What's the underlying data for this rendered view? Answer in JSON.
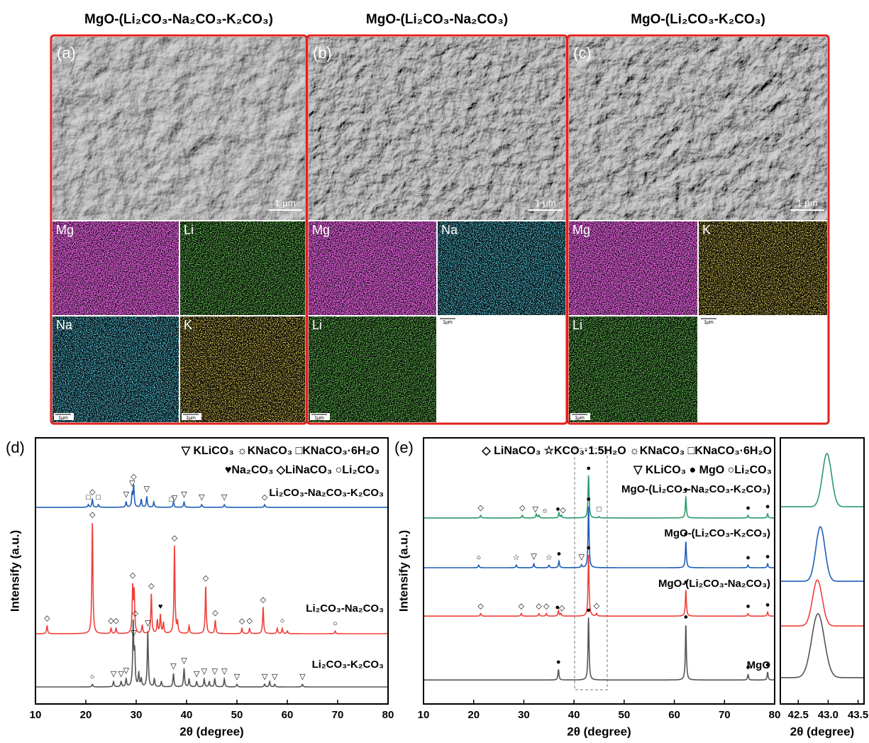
{
  "sem": {
    "panels": [
      {
        "label": "(a)",
        "title": "MgO-(Li₂CO₃-Na₂CO₃-K₂CO₃)",
        "scale_bar": "1 µm",
        "maps": [
          {
            "element": "Mg"
          },
          {
            "element": "Li"
          },
          {
            "element": "Na",
            "scale_bar": "1μm"
          },
          {
            "element": "K",
            "scale_bar": "1μm"
          }
        ]
      },
      {
        "label": "(b)",
        "title": "MgO-(Li₂CO₃-Na₂CO₃)",
        "scale_bar": "1 µm",
        "maps": [
          {
            "element": "Mg"
          },
          {
            "element": "Na",
            "scale_bar": "1μm"
          },
          {
            "element": "Li",
            "scale_bar": "1μm"
          }
        ]
      },
      {
        "label": "(c)",
        "title": "MgO-(Li₂CO₃-K₂CO₃)",
        "scale_bar": "1 µm",
        "maps": [
          {
            "element": "Mg"
          },
          {
            "element": "K",
            "scale_bar": "1μm"
          },
          {
            "element": "Li",
            "scale_bar": "1μm"
          }
        ]
      }
    ]
  },
  "chart_data": [
    {
      "type": "xrd",
      "panel_label": "(d)",
      "xlabel": "2θ (degree)",
      "ylabel": "Intensify (a.u.)",
      "xlim": [
        10,
        80
      ],
      "xticks": [
        10,
        20,
        30,
        40,
        50,
        60,
        70,
        80
      ],
      "ylim": [
        0,
        100
      ],
      "legend": [
        "▽ KLiCO₃ ☼KNaCO₃ □KNaCO₃·6H₂O",
        "♥Na₂CO₃ ◇LiNaCO₃ ○Li₂CO₃"
      ],
      "series": [
        {
          "name": "Li₂CO₃-Na₂CO₃-K₂CO₃",
          "color": "#1f5fb8",
          "baseline": 73.9,
          "peaks": {
            "x": [
              20.5,
              21.3,
              22.5,
              28,
              29.2,
              29.5,
              31,
              32.1,
              33.5,
              37.4,
              39.5,
              43,
              47.5,
              55.5
            ],
            "height": [
              1,
              3,
              1,
              2,
              5,
              8,
              3,
              4,
              2,
              2,
              2,
              1,
              1,
              1
            ]
          },
          "markers": [
            {
              "x": 20.5,
              "symbol": "□"
            },
            {
              "x": 21.3,
              "symbol": "◇"
            },
            {
              "x": 22.5,
              "symbol": "□"
            },
            {
              "x": 28,
              "symbol": "▽"
            },
            {
              "x": 29.2,
              "symbol": "▽"
            },
            {
              "x": 29.5,
              "symbol": "◇"
            },
            {
              "x": 32.1,
              "symbol": "▽"
            },
            {
              "x": 37,
              "symbol": "□"
            },
            {
              "x": 37.6,
              "symbol": "▽"
            },
            {
              "x": 39.5,
              "symbol": "▽"
            },
            {
              "x": 43,
              "symbol": "▽"
            },
            {
              "x": 47.5,
              "symbol": "▽"
            },
            {
              "x": 55.5,
              "symbol": "◇"
            }
          ]
        },
        {
          "name": "Li₂CO₃-Na₂CO₃",
          "color": "#f0403a",
          "baseline": 26.4,
          "peaks": {
            "x": [
              12.3,
              21.3,
              25,
              26,
              29.3,
              29.6,
              31.2,
              33,
              34.2,
              34.8,
              35.4,
              37.6,
              38.2,
              40.5,
              43.8,
              45.7,
              51,
              52.5,
              55.2,
              58,
              59,
              60,
              69.5
            ],
            "height": [
              3,
              42,
              2,
              2,
              17,
              15,
              3,
              15,
              5,
              7,
              4,
              33,
              4,
              3,
              18,
              5,
              2,
              2,
              10,
              2,
              2,
              1,
              1
            ]
          },
          "markers": [
            {
              "x": 12.3,
              "symbol": "◇"
            },
            {
              "x": 21.3,
              "symbol": "◇"
            },
            {
              "x": 25,
              "symbol": "◇"
            },
            {
              "x": 26,
              "symbol": "◇"
            },
            {
              "x": 29.3,
              "symbol": "◇"
            },
            {
              "x": 29.8,
              "symbol": "◇"
            },
            {
              "x": 33,
              "symbol": "◇"
            },
            {
              "x": 34.8,
              "symbol": "♥"
            },
            {
              "x": 37.6,
              "symbol": "◇"
            },
            {
              "x": 43.8,
              "symbol": "◇"
            },
            {
              "x": 45.7,
              "symbol": "◇"
            },
            {
              "x": 51,
              "symbol": "◇"
            },
            {
              "x": 52.5,
              "symbol": "◇"
            },
            {
              "x": 55.2,
              "symbol": "◇"
            },
            {
              "x": 59,
              "symbol": "○"
            },
            {
              "x": 69.5,
              "symbol": "○"
            }
          ]
        },
        {
          "name": "Li₂CO₃-K₂CO₃",
          "color": "#555555",
          "baseline": 6.4,
          "peaks": {
            "x": [
              21.3,
              25.5,
              27,
              28,
              29.4,
              29.7,
              30.5,
              31,
              32.3,
              33.6,
              35,
              37.4,
              39.5,
              40.5,
              42,
              43.5,
              44.5,
              45.6,
              47.5,
              50,
              55.5,
              56.5,
              57.5,
              63
            ],
            "height": [
              1,
              2,
              2,
              3,
              24,
              12,
              5,
              3,
              21,
              3,
              2,
              5,
              7,
              3,
              2,
              3,
              2,
              3,
              3,
              1,
              1,
              2,
              1,
              1
            ]
          },
          "markers": [
            {
              "x": 21.3,
              "symbol": "○"
            },
            {
              "x": 25.5,
              "symbol": "▽"
            },
            {
              "x": 27,
              "symbol": "▽"
            },
            {
              "x": 28,
              "symbol": "▽"
            },
            {
              "x": 29.5,
              "symbol": "▽"
            },
            {
              "x": 32.3,
              "symbol": "▽"
            },
            {
              "x": 37.4,
              "symbol": "▽"
            },
            {
              "x": 39.5,
              "symbol": "▽"
            },
            {
              "x": 42,
              "symbol": "▽"
            },
            {
              "x": 43.5,
              "symbol": "▽"
            },
            {
              "x": 45.6,
              "symbol": "▽"
            },
            {
              "x": 47.5,
              "symbol": "▽"
            },
            {
              "x": 50,
              "symbol": "▽"
            },
            {
              "x": 55.5,
              "symbol": "▽"
            },
            {
              "x": 57.5,
              "symbol": "▽"
            },
            {
              "x": 63,
              "symbol": "▽"
            }
          ]
        }
      ]
    },
    {
      "type": "xrd",
      "panel_label": "(e)",
      "xlabel": "2θ (degree)",
      "ylabel": "Intensify (a.u.)",
      "xlim": [
        10,
        80
      ],
      "xticks": [
        10,
        20,
        30,
        40,
        50,
        60,
        70,
        80
      ],
      "ylim": [
        0,
        100
      ],
      "legend": [
        "◇ LiNaCO₃ ☆KCO₃·1.5H₂O ☼KNaCO₃ □KNaCO₃·6H₂O",
        "▽ KLiCO₃ ● MgO ○Li₂CO₃"
      ],
      "series": [
        {
          "name": "MgO-(Li₂CO₃-Na₂CO₃-K₂CO₃)",
          "color": "#2a9a6a",
          "baseline": 69.9,
          "peaks": {
            "x": [
              21.4,
              29.7,
              32.5,
              33,
              37,
              37.5,
              42.9,
              45,
              62.3,
              74.7,
              78.6
            ],
            "height": [
              1,
              1,
              1.5,
              1,
              2,
              1,
              16,
              0.5,
              8,
              1,
              1.5
            ]
          },
          "markers": [
            {
              "x": 21.4,
              "symbol": "◇"
            },
            {
              "x": 29.7,
              "symbol": "◇"
            },
            {
              "x": 32.3,
              "symbol": "▽"
            },
            {
              "x": 34.2,
              "symbol": "☼"
            },
            {
              "x": 36.8,
              "symbol": "●"
            },
            {
              "x": 37.8,
              "symbol": "◇"
            },
            {
              "x": 42.9,
              "symbol": "●"
            },
            {
              "x": 45,
              "symbol": "□"
            },
            {
              "x": 62.3,
              "symbol": "●"
            },
            {
              "x": 74.7,
              "symbol": "●"
            },
            {
              "x": 78.6,
              "symbol": "●"
            }
          ]
        },
        {
          "name": "MgO-(Li₂CO₃-K₂CO₃)",
          "color": "#1f5fb8",
          "baseline": 51.2,
          "peaks": {
            "x": [
              21,
              28.5,
              32,
              35,
              37,
              41.5,
              42.9,
              62.3,
              74.7,
              78.6
            ],
            "height": [
              1,
              1,
              1.5,
              1,
              2.5,
              1,
              23,
              10,
              1,
              1.5
            ]
          },
          "markers": [
            {
              "x": 21,
              "symbol": "○"
            },
            {
              "x": 28.5,
              "symbol": "☆"
            },
            {
              "x": 32,
              "symbol": "▽"
            },
            {
              "x": 35,
              "symbol": "☆"
            },
            {
              "x": 37,
              "symbol": "●"
            },
            {
              "x": 41.5,
              "symbol": "▽"
            },
            {
              "x": 42.9,
              "symbol": "●"
            },
            {
              "x": 62.3,
              "symbol": "●"
            },
            {
              "x": 74.7,
              "symbol": "●"
            },
            {
              "x": 78.6,
              "symbol": "●"
            }
          ]
        },
        {
          "name": "MgO-(Li₂CO₃-Na₂CO₃)",
          "color": "#f0403a",
          "baseline": 33,
          "peaks": {
            "x": [
              21.4,
              29.5,
              33,
              34.5,
              36.9,
              37.4,
              42.9,
              44.5,
              62.3,
              74.7,
              78.6
            ],
            "height": [
              1,
              1,
              1,
              1,
              2,
              1,
              23,
              1,
              10,
              1,
              1.5
            ]
          },
          "markers": [
            {
              "x": 21.4,
              "symbol": "◇"
            },
            {
              "x": 29.5,
              "symbol": "◇"
            },
            {
              "x": 33,
              "symbol": "◇"
            },
            {
              "x": 34.5,
              "symbol": "◇"
            },
            {
              "x": 36.7,
              "symbol": "●"
            },
            {
              "x": 37.6,
              "symbol": "◇"
            },
            {
              "x": 42.9,
              "symbol": "●"
            },
            {
              "x": 44.5,
              "symbol": "◇"
            },
            {
              "x": 62.3,
              "symbol": "●"
            },
            {
              "x": 74.7,
              "symbol": "●"
            },
            {
              "x": 78.6,
              "symbol": "●"
            }
          ]
        },
        {
          "name": "MgO",
          "color": "#555555",
          "baseline": 9,
          "peaks": {
            "x": [
              36.9,
              42.9,
              62.3,
              74.7,
              78.6
            ],
            "height": [
              4,
              23.5,
              21,
              2,
              3
            ]
          },
          "markers": [
            {
              "x": 36.9,
              "symbol": "●"
            },
            {
              "x": 42.9,
              "symbol": "●"
            },
            {
              "x": 62.3,
              "symbol": "●"
            },
            {
              "x": 74.7,
              "symbol": "●"
            },
            {
              "x": 78.6,
              "symbol": "●"
            }
          ]
        }
      ],
      "inset": {
        "xlabel": "2θ (degree)",
        "xlim": [
          42.2,
          43.6
        ],
        "xticks": [
          42.5,
          {
            "value": 43,
            "label": "43.0"
          },
          43.5
        ],
        "ylim": [
          0,
          100
        ],
        "series": [
          {
            "color": "#2a9a6a",
            "baseline": 74.1,
            "center": 42.98,
            "height": 20,
            "fwhm": 0.18
          },
          {
            "color": "#1f5fb8",
            "baseline": 46.1,
            "center": 42.87,
            "height": 20.5,
            "fwhm": 0.18
          },
          {
            "color": "#f0403a",
            "baseline": 29.3,
            "center": 42.82,
            "height": 17.3,
            "fwhm": 0.19
          },
          {
            "color": "#555555",
            "baseline": 9.9,
            "center": 42.83,
            "height": 24,
            "fwhm": 0.25
          }
        ]
      }
    }
  ]
}
